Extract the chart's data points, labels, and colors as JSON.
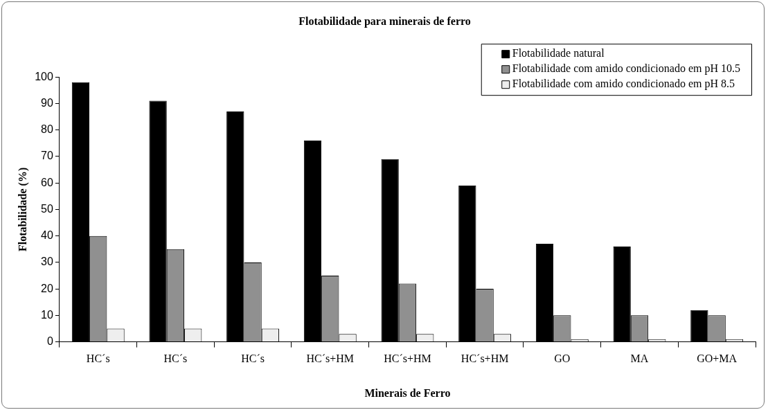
{
  "chart_data": {
    "type": "bar",
    "title": "Flotabilidade para minerais de ferro",
    "xlabel": "Minerais de Ferro",
    "ylabel": "Flotabilidade (%)",
    "categories": [
      "HC´s",
      "HC´s",
      "HC´s",
      "HC´s+HM",
      "HC´s+HM",
      "HC´s+HM",
      "GO",
      "MA",
      "GO+MA"
    ],
    "series": [
      {
        "name": "Flotabilidade natural",
        "color": "#000000",
        "values": [
          98,
          91,
          87,
          76,
          69,
          59,
          37,
          36,
          12
        ]
      },
      {
        "name": "Flotabilidade com amido condicionado em pH 10.5",
        "color": "#909090",
        "values": [
          40,
          35,
          30,
          25,
          22,
          20,
          10,
          10,
          10
        ]
      },
      {
        "name": "Flotabilidade com amido condicionado em pH 8.5",
        "color": "#eeeeee",
        "values": [
          5,
          5,
          5,
          3,
          3,
          3,
          1,
          1,
          1
        ]
      }
    ],
    "ylim": [
      0,
      100
    ],
    "yticks": [
      0,
      10,
      20,
      30,
      40,
      50,
      60,
      70,
      80,
      90,
      100
    ],
    "grid": false,
    "legend": "top right"
  }
}
